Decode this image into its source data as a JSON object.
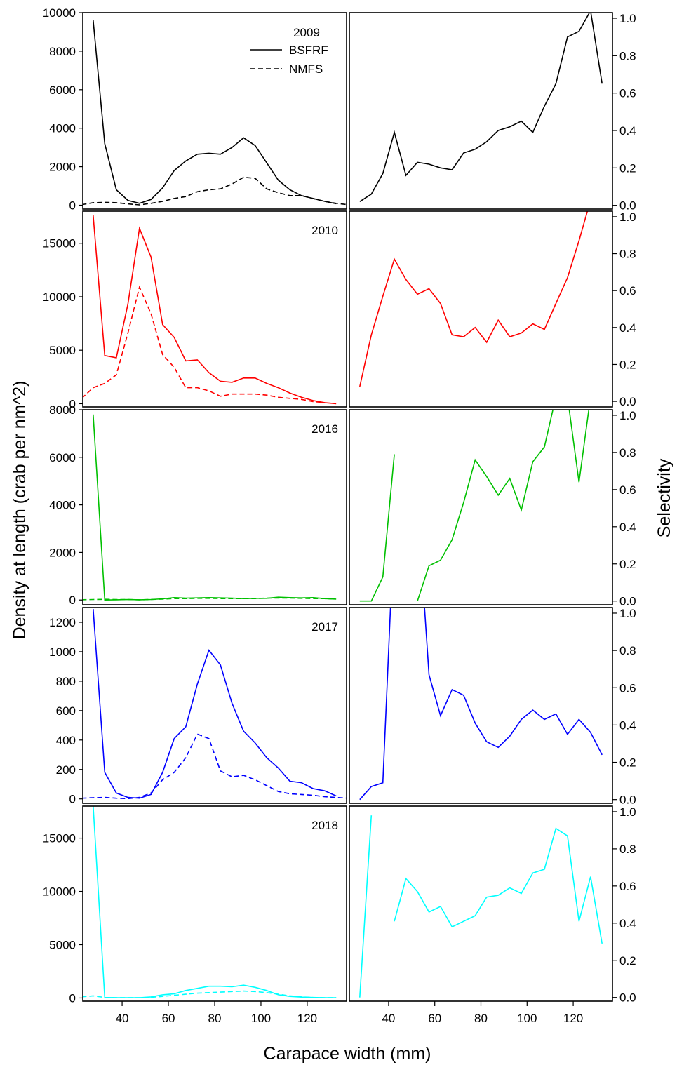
{
  "chart_data": {
    "type": "line",
    "xlabel": "Carapace width (mm)",
    "ylabel_left": "Density at length (crab per nm^2)",
    "ylabel_right": "Selectivity",
    "xlim": [
      23,
      137
    ],
    "x_ticks": [
      40,
      60,
      80,
      100,
      120
    ],
    "x_ticks_labels": [
      "40",
      "60",
      "80",
      "100",
      "120"
    ],
    "legend": {
      "placement": "top-center of first panel",
      "title": "2009",
      "entries": [
        {
          "label": "BSFRF",
          "style": "solid"
        },
        {
          "label": "NMFS",
          "style": "dashed"
        }
      ]
    },
    "selectivity_ticks": [
      0.0,
      0.2,
      0.4,
      0.6,
      0.8,
      1.0
    ],
    "selectivity_tick_labels": [
      "0.0",
      "0.2",
      "0.4",
      "0.6",
      "0.8",
      "1.0"
    ],
    "panels": [
      {
        "year": "2009",
        "show_year_label": false,
        "color": "#000000",
        "density_ylim": [
          -200,
          10000
        ],
        "density_ticks": [
          0,
          2000,
          4000,
          6000,
          8000,
          10000
        ],
        "density_tick_labels": [
          "0",
          "2000",
          "4000",
          "6000",
          "8000",
          "10000"
        ],
        "bsfrf": {
          "x": [
            27.5,
            32.5,
            37.5,
            42.5,
            47.5,
            52.5,
            57.5,
            62.5,
            67.5,
            72.5,
            77.5,
            82.5,
            87.5,
            92.5,
            97.5,
            102.5,
            107.5,
            112.5,
            117.5,
            122.5,
            127.5,
            132.5
          ],
          "y": [
            9600,
            3200,
            800,
            250,
            100,
            300,
            900,
            1800,
            2300,
            2650,
            2700,
            2650,
            3000,
            3500,
            3100,
            2200,
            1300,
            800,
            500,
            350,
            200,
            80
          ]
        },
        "nmfs": {
          "x": [
            22.5,
            27.5,
            32.5,
            37.5,
            42.5,
            47.5,
            52.5,
            57.5,
            62.5,
            67.5,
            72.5,
            77.5,
            82.5,
            87.5,
            92.5,
            97.5,
            102.5,
            107.5,
            112.5,
            117.5,
            122.5,
            127.5,
            132.5,
            137.5
          ],
          "y": [
            30,
            130,
            150,
            130,
            70,
            20,
            100,
            200,
            350,
            450,
            700,
            800,
            850,
            1100,
            1450,
            1400,
            850,
            650,
            500,
            500,
            350,
            200,
            100,
            30
          ]
        },
        "selectivity_ylim": [
          -0.02,
          1.03
        ],
        "selectivity": [
          {
            "x": [
              27.5,
              32.5,
              37.5,
              42.5,
              47.5,
              52.5,
              57.5,
              62.5,
              67.5,
              72.5,
              77.5,
              82.5,
              87.5,
              92.5,
              97.5,
              102.5,
              107.5,
              112.5,
              117.5,
              122.5,
              127.5,
              132.5
            ],
            "y": [
              0.02,
              0.06,
              0.17,
              0.39,
              0.16,
              0.23,
              0.22,
              0.2,
              0.19,
              0.28,
              0.3,
              0.34,
              0.4,
              0.42,
              0.45,
              0.39,
              0.53,
              0.65,
              0.9,
              0.93,
              1.04,
              0.65
            ]
          }
        ]
      },
      {
        "year": "2010",
        "show_year_label": true,
        "color": "#ff0000",
        "density_ylim": [
          -300,
          18000
        ],
        "density_ticks": [
          0,
          5000,
          10000,
          15000
        ],
        "density_tick_labels": [
          "0",
          "5000",
          "10000",
          "15000"
        ],
        "bsfrf": {
          "x": [
            27.5,
            32.5,
            37.5,
            42.5,
            47.5,
            52.5,
            57.5,
            62.5,
            67.5,
            72.5,
            77.5,
            82.5,
            87.5,
            92.5,
            97.5,
            102.5,
            107.5,
            112.5,
            117.5,
            122.5,
            127.5,
            132.5
          ],
          "y": [
            17600,
            4500,
            4300,
            9300,
            16400,
            13700,
            7400,
            6200,
            4000,
            4100,
            2900,
            2100,
            2000,
            2400,
            2400,
            1900,
            1500,
            1000,
            600,
            300,
            100,
            0
          ]
        },
        "nmfs": {
          "x": [
            22.5,
            27.5,
            32.5,
            37.5,
            42.5,
            47.5,
            52.5,
            57.5,
            62.5,
            67.5,
            72.5,
            77.5,
            82.5,
            87.5,
            92.5,
            97.5,
            102.5,
            107.5,
            112.5,
            117.5,
            122.5,
            127.5
          ],
          "y": [
            500,
            1500,
            1900,
            2700,
            6600,
            10900,
            8400,
            4600,
            3400,
            1500,
            1500,
            1200,
            700,
            900,
            900,
            900,
            800,
            600,
            500,
            400,
            200,
            100
          ]
        },
        "selectivity_ylim": [
          -0.03,
          1.03
        ],
        "selectivity": [
          {
            "x": [
              27.5,
              32.5,
              37.5,
              42.5,
              47.5,
              52.5,
              57.5,
              62.5,
              67.5,
              72.5,
              77.5,
              82.5,
              87.5,
              92.5,
              97.5,
              102.5,
              107.5,
              112.5,
              117.5,
              122.5,
              127.5
            ],
            "y": [
              0.08,
              0.36,
              0.57,
              0.77,
              0.66,
              0.58,
              0.61,
              0.53,
              0.36,
              0.35,
              0.4,
              0.32,
              0.44,
              0.35,
              0.37,
              0.42,
              0.39,
              0.53,
              0.67,
              0.87,
              1.09
            ]
          }
        ]
      },
      {
        "year": "2016",
        "show_year_label": true,
        "color": "#00c000",
        "density_ylim": [
          -200,
          8000
        ],
        "density_ticks": [
          0,
          2000,
          4000,
          6000,
          8000
        ],
        "density_tick_labels": [
          "0",
          "2000",
          "4000",
          "6000",
          "8000"
        ],
        "bsfrf": {
          "x": [
            27.5,
            32.5,
            37.5,
            42.5,
            47.5,
            52.5,
            57.5,
            62.5,
            67.5,
            72.5,
            77.5,
            82.5,
            87.5,
            92.5,
            97.5,
            102.5,
            107.5,
            112.5,
            117.5,
            122.5,
            127.5,
            132.5
          ],
          "y": [
            7800,
            0,
            10,
            20,
            10,
            20,
            50,
            100,
            80,
            90,
            100,
            90,
            80,
            60,
            70,
            70,
            120,
            100,
            90,
            100,
            60,
            40
          ]
        },
        "nmfs": {
          "x": [
            22.5,
            27.5,
            32.5,
            37.5,
            42.5,
            47.5,
            52.5,
            57.5,
            62.5,
            67.5,
            72.5,
            77.5,
            82.5,
            87.5,
            92.5,
            97.5,
            102.5,
            107.5,
            112.5,
            117.5,
            122.5,
            127.5,
            132.5
          ],
          "y": [
            10,
            20,
            30,
            20,
            20,
            10,
            20,
            40,
            60,
            60,
            70,
            70,
            60,
            60,
            60,
            60,
            80,
            80,
            80,
            70,
            60,
            60,
            40
          ]
        },
        "selectivity_ylim": [
          -0.02,
          1.03
        ],
        "selectivity": [
          {
            "x": [
              27.5,
              32.5,
              37.5,
              42.5
            ],
            "y": [
              0.0,
              0.0,
              0.13,
              0.79
            ]
          },
          {
            "x": [
              52.5,
              57.5,
              62.5,
              67.5,
              72.5,
              77.5,
              82.5,
              87.5,
              92.5,
              97.5,
              102.5,
              107.5,
              112.5,
              117.5,
              122.5,
              127.5
            ],
            "y": [
              0.0,
              0.19,
              0.22,
              0.33,
              0.53,
              0.76,
              0.67,
              0.57,
              0.66,
              0.49,
              0.75,
              0.83,
              1.1,
              1.1,
              0.64,
              1.1
            ]
          }
        ]
      },
      {
        "year": "2017",
        "show_year_label": true,
        "color": "#0000ff",
        "density_ylim": [
          -30,
          1300
        ],
        "density_ticks": [
          0,
          200,
          400,
          600,
          800,
          1000,
          1200
        ],
        "density_tick_labels": [
          "0",
          "200",
          "400",
          "600",
          "800",
          "1000",
          "1200"
        ],
        "bsfrf": {
          "x": [
            27.5,
            32.5,
            37.5,
            42.5,
            47.5,
            52.5,
            57.5,
            62.5,
            67.5,
            72.5,
            77.5,
            82.5,
            87.5,
            92.5,
            97.5,
            102.5,
            107.5,
            112.5,
            117.5,
            122.5,
            127.5,
            132.5
          ],
          "y": [
            1290,
            180,
            40,
            10,
            5,
            30,
            180,
            410,
            490,
            780,
            1010,
            910,
            650,
            460,
            380,
            280,
            210,
            120,
            110,
            70,
            55,
            20
          ]
        },
        "nmfs": {
          "x": [
            22.5,
            27.5,
            32.5,
            37.5,
            42.5,
            47.5,
            52.5,
            57.5,
            62.5,
            67.5,
            72.5,
            77.5,
            82.5,
            87.5,
            92.5,
            97.5,
            102.5,
            107.5,
            112.5,
            117.5,
            122.5,
            127.5,
            132.5,
            137.5
          ],
          "y": [
            5,
            8,
            10,
            5,
            2,
            10,
            40,
            130,
            180,
            280,
            440,
            410,
            190,
            150,
            160,
            130,
            90,
            50,
            35,
            30,
            25,
            15,
            10,
            5
          ]
        },
        "selectivity_ylim": [
          -0.02,
          1.03
        ],
        "selectivity": [
          {
            "x": [
              27.5,
              32.5,
              37.5,
              42.5,
              47.5,
              52.5,
              57.5,
              62.5,
              67.5,
              72.5,
              77.5,
              82.5,
              87.5,
              92.5,
              97.5,
              102.5,
              107.5,
              112.5,
              117.5,
              122.5,
              127.5,
              132.5
            ],
            "y": [
              0.0,
              0.07,
              0.09,
              1.5,
              2.2,
              1.6,
              0.67,
              0.45,
              0.59,
              0.56,
              0.41,
              0.31,
              0.28,
              0.34,
              0.43,
              0.48,
              0.43,
              0.46,
              0.35,
              0.43,
              0.36,
              0.24
            ]
          }
        ]
      },
      {
        "year": "2018",
        "show_year_label": true,
        "color": "#00ffff",
        "density_ylim": [
          -300,
          18000
        ],
        "density_ticks": [
          0,
          5000,
          10000,
          15000
        ],
        "density_tick_labels": [
          "0",
          "5000",
          "10000",
          "15000"
        ],
        "bsfrf": {
          "x": [
            27.5,
            32.5,
            37.5,
            42.5,
            47.5,
            52.5,
            57.5,
            62.5,
            67.5,
            72.5,
            77.5,
            82.5,
            87.5,
            92.5,
            97.5,
            102.5,
            107.5,
            112.5,
            117.5,
            122.5,
            127.5,
            132.5
          ],
          "y": [
            18000,
            50,
            30,
            20,
            30,
            100,
            300,
            400,
            700,
            900,
            1100,
            1100,
            1050,
            1200,
            1000,
            700,
            300,
            150,
            80,
            50,
            30,
            20
          ]
        },
        "nmfs": {
          "x": [
            22.5,
            27.5,
            32.5,
            37.5,
            42.5,
            47.5,
            52.5,
            57.5,
            62.5,
            67.5,
            72.5,
            77.5,
            82.5,
            87.5,
            92.5,
            97.5,
            102.5,
            107.5,
            112.5,
            117.5,
            122.5,
            127.5,
            132.5
          ],
          "y": [
            100,
            200,
            50,
            30,
            20,
            30,
            60,
            150,
            250,
            350,
            450,
            500,
            550,
            600,
            650,
            600,
            500,
            350,
            200,
            100,
            50,
            30,
            20
          ]
        },
        "selectivity_ylim": [
          -0.02,
          1.03
        ],
        "selectivity": [
          {
            "x": [
              27.5,
              32.5
            ],
            "y": [
              0.0,
              0.98
            ]
          },
          {
            "x": [
              42.5,
              47.5,
              52.5,
              57.5,
              62.5,
              67.5,
              72.5,
              77.5,
              82.5,
              87.5,
              92.5,
              97.5,
              102.5,
              107.5,
              112.5,
              117.5,
              122.5,
              127.5,
              132.5
            ],
            "y": [
              0.41,
              0.64,
              0.57,
              0.46,
              0.49,
              0.38,
              0.41,
              0.44,
              0.54,
              0.55,
              0.59,
              0.56,
              0.67,
              0.69,
              0.91,
              0.87,
              0.41,
              0.65,
              0.29
            ]
          }
        ]
      }
    ]
  }
}
